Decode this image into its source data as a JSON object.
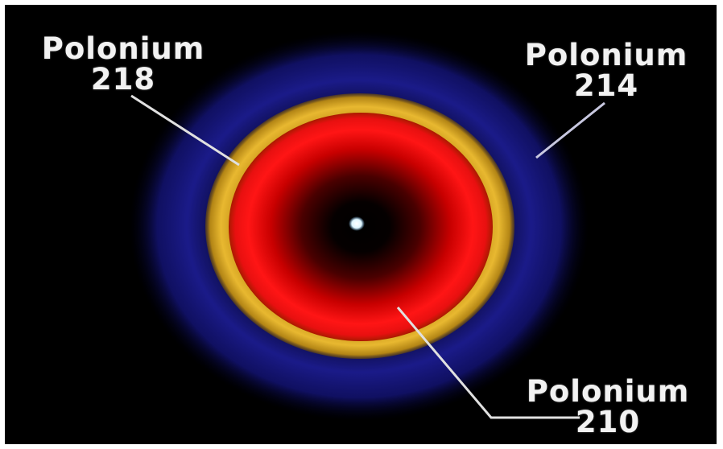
{
  "labels": {
    "po218": {
      "name": "Polonium",
      "number": "218"
    },
    "po214": {
      "name": "Polonium",
      "number": "214"
    },
    "po210": {
      "name": "Polonium",
      "number": "210"
    }
  },
  "colors": {
    "background": "#000000",
    "po214_halo": "#1a1a8c",
    "po218_ring": "#d9a520",
    "po210_disc": "#ff1010",
    "center_grain": "#ffffff",
    "leader_line": "#e0e0e0"
  }
}
